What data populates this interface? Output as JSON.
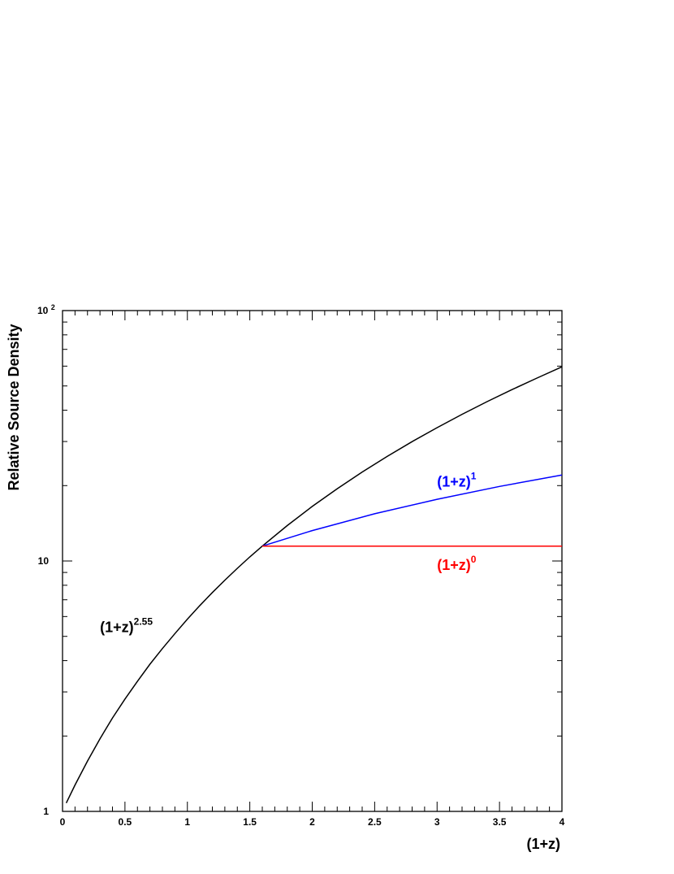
{
  "chart_data": {
    "type": "line",
    "xlabel": "(1+z)",
    "ylabel": "Relative Source Density",
    "xlim": [
      0,
      4
    ],
    "ylim": [
      1,
      100
    ],
    "yscale": "log",
    "x_ticks": [
      "0",
      "0.5",
      "1",
      "1.5",
      "2",
      "2.5",
      "3",
      "3.5",
      "4"
    ],
    "y_ticks": [
      {
        "base": "1",
        "exp": ""
      },
      {
        "base": "10",
        "exp": ""
      },
      {
        "base": "10",
        "exp": "2"
      }
    ],
    "series": [
      {
        "name": "(1+z)^2.55",
        "color": "#000000",
        "x": [
          0.03,
          0.1,
          0.2,
          0.3,
          0.4,
          0.5,
          0.6,
          0.7,
          0.8,
          0.9,
          1.0,
          1.1,
          1.2,
          1.3,
          1.4,
          1.5,
          1.6,
          1.8,
          2.0,
          2.2,
          2.4,
          2.6,
          2.8,
          3.0,
          3.2,
          3.4,
          3.6,
          3.8,
          4.0
        ],
        "y": [
          1.08,
          1.275,
          1.59,
          1.95,
          2.36,
          2.81,
          3.31,
          3.87,
          4.47,
          5.13,
          5.86,
          6.64,
          7.48,
          8.38,
          9.35,
          10.38,
          11.47,
          13.85,
          16.51,
          19.44,
          22.65,
          26.16,
          29.97,
          34.09,
          38.52,
          43.28,
          48.36,
          53.78,
          59.6
        ]
      },
      {
        "name": "(1+z)^1",
        "color": "#0000ff",
        "x": [
          1.6,
          2.0,
          2.5,
          3.0,
          3.5,
          4.0
        ],
        "y": [
          11.47,
          13.23,
          15.44,
          17.64,
          19.85,
          22.06
        ]
      },
      {
        "name": "(1+z)^0",
        "color": "#ff0000",
        "x": [
          1.6,
          4.0
        ],
        "y": [
          11.47,
          11.47
        ]
      }
    ],
    "annotations": [
      {
        "base": "(1+z)",
        "exp": "2.55",
        "color": "#000000",
        "x": 0.3,
        "y": 5.2
      },
      {
        "base": "(1+z)",
        "exp": "1",
        "color": "#0000ff",
        "x": 3.0,
        "y": 19.8
      },
      {
        "base": "(1+z)",
        "exp": "0",
        "color": "#ff0000",
        "x": 3.0,
        "y": 9.2
      }
    ]
  }
}
